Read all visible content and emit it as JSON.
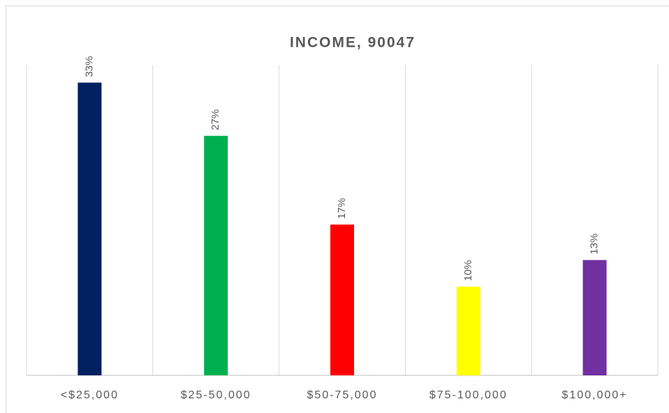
{
  "chart_data": {
    "type": "bar",
    "title": "INCOME, 90047",
    "categories": [
      "<$25,000",
      "$25-50,000",
      "$50-75,000",
      "$75-100,000",
      "$100,000+"
    ],
    "values": [
      33,
      27,
      17,
      10,
      13
    ],
    "value_labels": [
      "33%",
      "27%",
      "17%",
      "10%",
      "13%"
    ],
    "colors": [
      "#002060",
      "#00b050",
      "#ff0000",
      "#ffff00",
      "#7030a0"
    ],
    "ylim": [
      0,
      35
    ]
  }
}
